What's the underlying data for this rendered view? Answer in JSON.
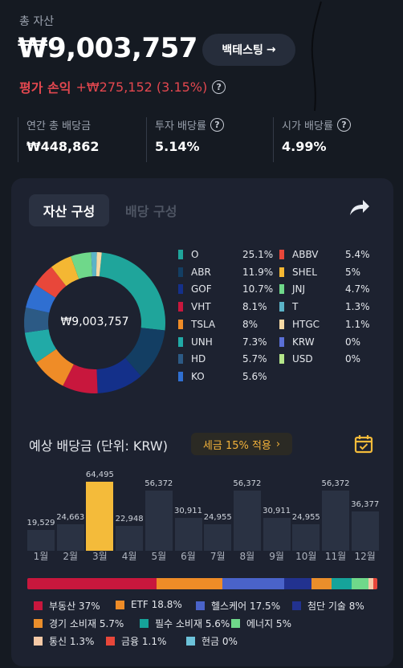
{
  "header": {
    "total_label": "총 자산",
    "total_value": "₩9,003,757",
    "backtest_label": "백테스팅",
    "backtest_arrow": "→",
    "pnl_label": "평가 손익",
    "pnl_value": "+₩275,152 (3.15%)",
    "help_glyph": "?"
  },
  "stats": {
    "annual_dividend_label": "연간 총 배당금",
    "annual_dividend_value": "₩448,862",
    "invest_yield_label": "투자 배당률",
    "invest_yield_value": "5.14%",
    "market_yield_label": "시가 배당률",
    "market_yield_value": "4.99%"
  },
  "tabs": {
    "asset_label": "자산 구성",
    "dividend_label": "배당 구성"
  },
  "composition": {
    "center_value": "₩9,003,757",
    "items": [
      {
        "name": "O",
        "pct": "25.1%",
        "value": 25.1,
        "color": "#1fa59b"
      },
      {
        "name": "ABR",
        "pct": "11.9%",
        "value": 11.9,
        "color": "#133e63"
      },
      {
        "name": "GOF",
        "pct": "10.7%",
        "value": 10.7,
        "color": "#14308a"
      },
      {
        "name": "VHT",
        "pct": "8.1%",
        "value": 8.1,
        "color": "#c8173d"
      },
      {
        "name": "TSLA",
        "pct": "8%",
        "value": 8.0,
        "color": "#ef8c27"
      },
      {
        "name": "UNH",
        "pct": "7.3%",
        "value": 7.3,
        "color": "#21aaa7"
      },
      {
        "name": "HD",
        "pct": "5.7%",
        "value": 5.7,
        "color": "#2c5a85"
      },
      {
        "name": "KO",
        "pct": "5.6%",
        "value": 5.6,
        "color": "#2f6fd1"
      },
      {
        "name": "ABBV",
        "pct": "5.4%",
        "value": 5.4,
        "color": "#e8473a"
      },
      {
        "name": "SHEL",
        "pct": "5%",
        "value": 5.0,
        "color": "#f4b733"
      },
      {
        "name": "JNJ",
        "pct": "4.7%",
        "value": 4.7,
        "color": "#6fd88a"
      },
      {
        "name": "T",
        "pct": "1.3%",
        "value": 1.3,
        "color": "#5bb3c7"
      },
      {
        "name": "HTGC",
        "pct": "1.1%",
        "value": 1.1,
        "color": "#f6d9a4"
      },
      {
        "name": "KRW",
        "pct": "0%",
        "value": 0,
        "color": "#5a6fd6"
      },
      {
        "name": "USD",
        "pct": "0%",
        "value": 0,
        "color": "#b4e58a"
      }
    ]
  },
  "dividend": {
    "title": "예상 배당금 (단위: KRW)",
    "tax_label": "세금 15% 적용",
    "tax_chevron": "›"
  },
  "chart_data": {
    "type": "bar",
    "categories": [
      "1월",
      "2월",
      "3월",
      "4월",
      "5월",
      "6월",
      "7월",
      "8월",
      "9월",
      "10월",
      "11월",
      "12월"
    ],
    "values": [
      19529,
      24663,
      64495,
      22948,
      56372,
      30911,
      24955,
      56372,
      30911,
      24955,
      56372,
      36377
    ],
    "value_labels": [
      "19,529",
      "24,663",
      "64,495",
      "22,948",
      "56,372",
      "30,911",
      "24,955",
      "56,372",
      "30,911",
      "24,955",
      "56,372",
      "36,377"
    ],
    "highlight_index": 2,
    "bar_color": "#2a3243",
    "highlight_color": "#f4bb3a"
  },
  "sectors": [
    {
      "label": "부동산 37%",
      "value": 37,
      "color": "#c8173d"
    },
    {
      "label": "ETF 18.8%",
      "value": 18.8,
      "color": "#ef8c27"
    },
    {
      "label": "헬스케어 17.5%",
      "value": 17.5,
      "color": "#4a63c9"
    },
    {
      "label": "첨단 기술 8%",
      "value": 8,
      "color": "#22328f"
    },
    {
      "label": "경기 소비재 5.7%",
      "value": 5.7,
      "color": "#ea8e2b"
    },
    {
      "label": "필수 소비재 5.6%",
      "value": 5.6,
      "color": "#16a39a"
    },
    {
      "label": "에너지 5%",
      "value": 5,
      "color": "#6fd88a"
    },
    {
      "label": "통신 1.3%",
      "value": 1.3,
      "color": "#f5c9a6"
    },
    {
      "label": "금융 1.1%",
      "value": 1.1,
      "color": "#e8473a"
    },
    {
      "label": "현금 0%",
      "value": 0,
      "color": "#6cc2d9"
    }
  ]
}
